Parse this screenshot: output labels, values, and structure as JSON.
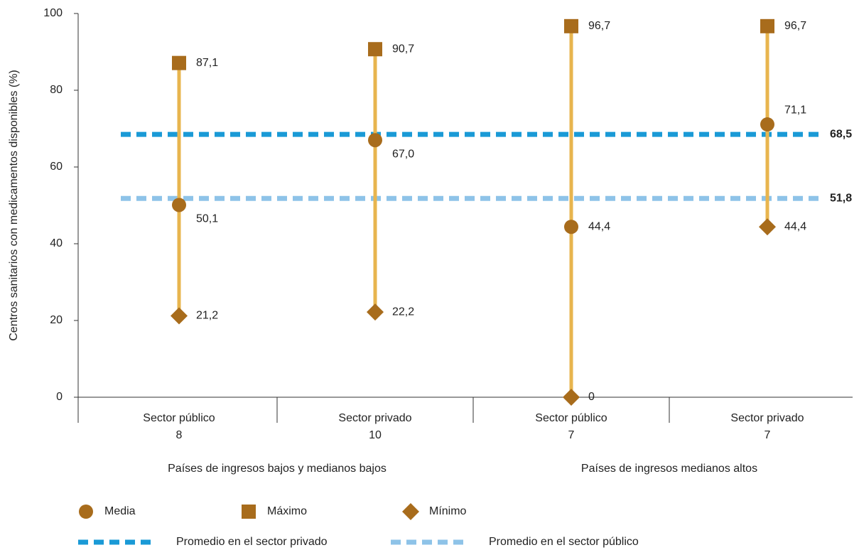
{
  "chart_data": {
    "type": "range",
    "y_label": "Centros sanitarios con medicamentos disponibles (%)",
    "categories": [
      "Sector público",
      "Sector privado",
      "Sector público",
      "Sector privado"
    ],
    "category_counts": [
      8,
      10,
      7,
      7
    ],
    "group_labels": [
      "Países de ingresos bajos y medianos bajos",
      "Países de ingresos medianos altos"
    ],
    "ylim": [
      0,
      100
    ],
    "yticks": [
      0,
      20,
      40,
      60,
      80,
      100
    ],
    "range_color": "#e8b54e",
    "series": [
      {
        "name": "Media",
        "marker": "circle",
        "color": "#a86c1c",
        "values": [
          50.1,
          67.0,
          44.4,
          71.1
        ],
        "value_labels": [
          "50,1",
          "67,0",
          "44,4",
          "71,1"
        ]
      },
      {
        "name": "Máximo",
        "marker": "square",
        "color": "#a86c1c",
        "values": [
          87.1,
          90.7,
          96.7,
          96.7
        ],
        "value_labels": [
          "87,1",
          "90,7",
          "96,7",
          "96,7"
        ]
      },
      {
        "name": "Mínimo",
        "marker": "diamond",
        "color": "#a86c1c",
        "values": [
          21.2,
          22.2,
          0,
          44.4
        ],
        "value_labels": [
          "21,2",
          "22,2",
          "0",
          "44,4"
        ]
      }
    ],
    "reference_lines": [
      {
        "name": "Promedio en el sector privado",
        "value": 68.5,
        "label": "68,5",
        "color": "#1a9ad6"
      },
      {
        "name": "Promedio en el sector público",
        "value": 51.8,
        "label": "51,8",
        "color": "#8ec3e8"
      }
    ]
  }
}
